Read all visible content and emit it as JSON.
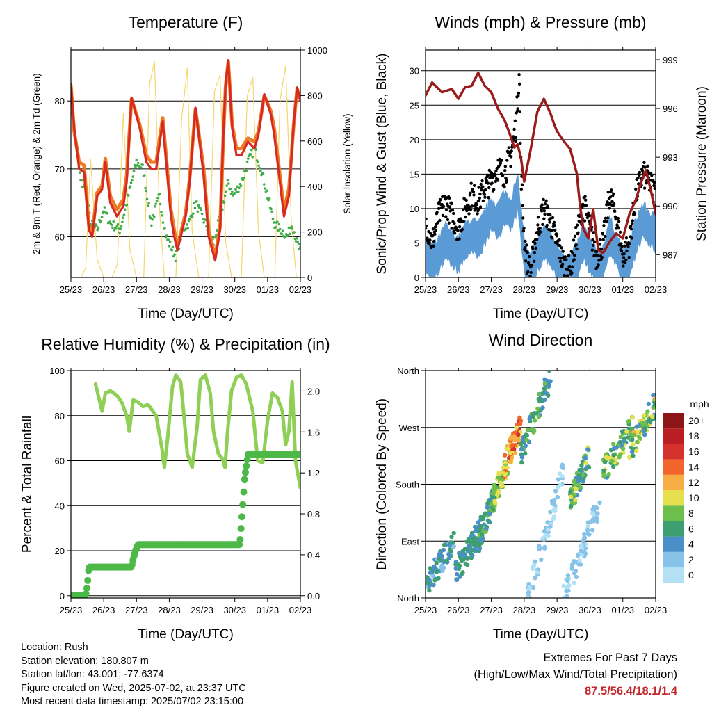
{
  "colors": {
    "temp2m": "#f07a22",
    "temp9m": "#d62a22",
    "dewpoint": "#3fae49",
    "solar": "#f5d76e",
    "wind": "#5b9bd5",
    "gust": "#000000",
    "pressure": "#9b1b1b",
    "rh": "#8fcf55",
    "precip": "#4cb848",
    "speed_scale": [
      "#b3e0f5",
      "#87c2e8",
      "#4b8fc9",
      "#3d9e72",
      "#6cbf4a",
      "#e6df4e",
      "#f7ad43",
      "#f2652a",
      "#d6322d",
      "#b81e23",
      "#8c1518"
    ]
  },
  "chart_data": [
    {
      "id": "temperature",
      "type": "line",
      "title": "Temperature (F)",
      "xlabel": "Time (Day/UTC)",
      "ylabel": "2m & 9m T (Red, Orange) & 2m Td (Green)",
      "y2label": "Solar Insolation (Yellow)",
      "xticks": [
        "25/23",
        "26/23",
        "27/23",
        "28/23",
        "29/23",
        "30/23",
        "01/23",
        "02/23"
      ],
      "xlim": [
        0,
        7
      ],
      "ylim": [
        54,
        87.5
      ],
      "yticks": [
        60,
        70,
        80
      ],
      "y2lim": [
        0,
        1000
      ],
      "y2ticks": [
        0,
        200,
        400,
        600,
        800,
        1000
      ],
      "grid": true,
      "series": [
        {
          "key": "temp9m",
          "x": [
            0,
            0.1,
            0.25,
            0.4,
            0.55,
            0.65,
            0.8,
            0.95,
            1.05,
            1.2,
            1.4,
            1.6,
            1.7,
            1.85,
            2.1,
            2.3,
            2.45,
            2.6,
            2.8,
            3.05,
            3.15,
            3.25,
            3.5,
            3.62,
            3.8,
            4.05,
            4.2,
            4.4,
            4.55,
            4.65,
            4.72,
            4.8,
            4.92,
            5.05,
            5.2,
            5.4,
            5.6,
            5.72,
            5.9,
            6.1,
            6.2,
            6.35,
            6.5,
            6.65,
            6.8,
            6.9,
            7.0
          ],
          "y": [
            82.5,
            76,
            70,
            69.5,
            61,
            60,
            66,
            67,
            71,
            65,
            63,
            64.5,
            68,
            80.5,
            76,
            71,
            70,
            70,
            77,
            63,
            60,
            58,
            63,
            68,
            79,
            69,
            60,
            56.5,
            61,
            75,
            82.5,
            86,
            76,
            72,
            72,
            74,
            73,
            75,
            81,
            78,
            75,
            69,
            63,
            66,
            77,
            82,
            80
          ]
        },
        {
          "key": "temp2m",
          "x": [
            0,
            0.1,
            0.25,
            0.4,
            0.55,
            0.65,
            0.8,
            0.95,
            1.05,
            1.2,
            1.4,
            1.6,
            1.7,
            1.85,
            2.1,
            2.3,
            2.45,
            2.6,
            2.8,
            3.05,
            3.15,
            3.25,
            3.5,
            3.62,
            3.8,
            4.05,
            4.2,
            4.4,
            4.55,
            4.65,
            4.72,
            4.8,
            4.92,
            5.05,
            5.2,
            5.4,
            5.6,
            5.72,
            5.9,
            6.1,
            6.2,
            6.35,
            6.5,
            6.65,
            6.8,
            6.9,
            7.0
          ],
          "y": [
            82.3,
            75.5,
            71,
            70.5,
            61.5,
            60.5,
            66.5,
            67.5,
            71.5,
            66,
            64,
            65.5,
            69,
            80.3,
            76.5,
            72,
            71,
            71,
            77.5,
            64,
            61,
            58.5,
            63.5,
            68.5,
            78.8,
            70,
            61,
            57,
            61.5,
            74.8,
            82.2,
            85.8,
            76.5,
            73,
            73,
            74.5,
            74,
            75.5,
            80.8,
            78.5,
            76,
            70,
            64,
            67,
            76.8,
            81.8,
            80.2
          ]
        },
        {
          "key": "dewpoint",
          "x": [
            0,
            0.15,
            0.3,
            0.45,
            0.6,
            0.8,
            1.0,
            1.2,
            1.5,
            1.7,
            1.85,
            2.0,
            2.2,
            2.45,
            2.7,
            2.9,
            3.1,
            3.2,
            3.4,
            3.6,
            3.8,
            4.0,
            4.2,
            4.35,
            4.5,
            4.65,
            4.8,
            4.95,
            5.2,
            5.4,
            5.6,
            5.8,
            6.0,
            6.2,
            6.4,
            6.6,
            6.75,
            6.9,
            7.0
          ],
          "y": [
            82,
            74,
            68,
            67,
            62,
            61,
            64,
            62,
            61,
            65,
            68,
            71,
            70,
            62,
            66,
            60,
            58,
            57,
            61,
            62,
            65,
            63,
            61,
            59,
            62,
            65,
            68,
            66,
            68,
            71,
            73,
            70,
            66,
            62,
            61,
            60,
            62,
            59,
            58
          ]
        },
        {
          "key": "solar",
          "x": [
            0,
            0.3,
            0.45,
            0.6,
            0.8,
            1.0,
            1.25,
            1.42,
            1.6,
            1.8,
            2.0,
            2.22,
            2.4,
            2.55,
            2.7,
            2.85,
            3.0,
            3.2,
            3.38,
            3.55,
            3.7,
            3.9,
            4.05,
            4.2,
            4.38,
            4.55,
            4.72,
            4.9,
            5.05,
            5.2,
            5.38,
            5.55,
            5.72,
            5.9,
            6.05,
            6.22,
            6.38,
            6.55,
            6.72,
            6.88,
            7.0
          ],
          "y": [
            0,
            0,
            40,
            520,
            80,
            0,
            0,
            60,
            720,
            120,
            0,
            0,
            850,
            950,
            300,
            0,
            0,
            0,
            700,
            920,
            200,
            0,
            0,
            0,
            820,
            890,
            160,
            0,
            0,
            0,
            800,
            880,
            200,
            0,
            0,
            0,
            780,
            930,
            250,
            0,
            0
          ]
        }
      ]
    },
    {
      "id": "winds",
      "type": "line",
      "title": "Winds (mph) & Pressure (mb)",
      "xlabel": "Time (Day/UTC)",
      "ylabel": "Sonic/Prop Wind & Gust (Blue, Black)",
      "y2label": "Station Pressure (Maroon)",
      "xticks": [
        "25/23",
        "26/23",
        "27/23",
        "28/23",
        "29/23",
        "30/23",
        "01/23",
        "02/23"
      ],
      "xlim": [
        0,
        7
      ],
      "ylim": [
        0,
        33
      ],
      "yticks": [
        0,
        5,
        10,
        15,
        20,
        25,
        30
      ],
      "y2lim": [
        985.6,
        999.6
      ],
      "y2ticks": [
        987,
        990,
        993,
        996,
        999
      ],
      "grid": true,
      "series": [
        {
          "key": "wind",
          "x": [
            0,
            0.2,
            0.4,
            0.6,
            0.8,
            1.0,
            1.2,
            1.4,
            1.6,
            1.8,
            2.0,
            2.2,
            2.4,
            2.6,
            2.8,
            2.9,
            3.0,
            3.1,
            3.2,
            3.4,
            3.6,
            3.8,
            4.0,
            4.2,
            4.4,
            4.6,
            4.8,
            5.0,
            5.2,
            5.4,
            5.6,
            5.8,
            6.0,
            6.2,
            6.4,
            6.6,
            6.8,
            7.0
          ],
          "y": [
            3,
            2,
            3,
            5,
            4,
            3,
            5,
            6,
            5,
            7,
            9,
            8,
            10,
            9,
            12,
            8,
            3,
            1,
            0.5,
            3,
            5,
            4,
            2,
            1,
            0.5,
            2,
            5,
            3,
            1,
            2,
            6,
            4,
            1,
            2,
            6,
            8,
            7,
            6
          ]
        },
        {
          "key": "gust",
          "x": [
            0,
            0.2,
            0.4,
            0.6,
            0.8,
            1.0,
            1.2,
            1.4,
            1.6,
            1.8,
            2.0,
            2.2,
            2.4,
            2.6,
            2.75,
            2.85,
            2.9,
            3.0,
            3.1,
            3.2,
            3.4,
            3.6,
            3.8,
            4.0,
            4.2,
            4.4,
            4.6,
            4.8,
            5.0,
            5.2,
            5.4,
            5.6,
            5.8,
            6.0,
            6.2,
            6.4,
            6.6,
            6.8,
            7.0
          ],
          "y": [
            8,
            5,
            9,
            11,
            9,
            7,
            10,
            12,
            11,
            13,
            14,
            16,
            15,
            18,
            22,
            30,
            16,
            6,
            2,
            1,
            7,
            10,
            8,
            5,
            2,
            1,
            6,
            11,
            7,
            3,
            5,
            12,
            9,
            3,
            5,
            12,
            15,
            14,
            12
          ]
        },
        {
          "key": "pressure",
          "x": [
            0,
            0.2,
            0.5,
            0.8,
            1.0,
            1.2,
            1.4,
            1.6,
            1.8,
            2.0,
            2.2,
            2.4,
            2.55,
            2.7,
            2.8,
            2.9,
            3.0,
            3.2,
            3.4,
            3.6,
            3.8,
            3.9,
            4.0,
            4.2,
            4.4,
            4.6,
            4.7,
            4.8,
            4.95,
            5.1,
            5.25,
            5.4,
            5.6,
            5.8,
            6.0,
            6.2,
            6.4,
            6.55,
            6.7,
            6.85,
            7.0
          ],
          "y": [
            996.8,
            997.6,
            997.0,
            997.2,
            996.6,
            997.3,
            997.4,
            998.2,
            997.4,
            997.0,
            996.0,
            995.3,
            994.5,
            993.6,
            993.8,
            993.0,
            991.5,
            993.5,
            995.8,
            996.6,
            995.7,
            995.1,
            994.6,
            994.0,
            993.5,
            992.0,
            990.0,
            988.6,
            988.0,
            989.8,
            987.3,
            987.1,
            987.8,
            988.3,
            988.0,
            989.5,
            990.4,
            991.4,
            992.2,
            991.0,
            989.5
          ]
        }
      ]
    },
    {
      "id": "humidity",
      "type": "line",
      "title": "Relative Humidity (%) & Precipitation (in)",
      "xlabel": "Time (Day/UTC)",
      "ylabel": "Percent & Total Rainfall",
      "xticks": [
        "25/23",
        "26/23",
        "27/23",
        "28/23",
        "29/23",
        "30/23",
        "01/23",
        "02/23"
      ],
      "xlim": [
        0,
        7
      ],
      "ylim": [
        -1,
        100
      ],
      "yticks": [
        0,
        20,
        40,
        60,
        80,
        100
      ],
      "y2lim": [
        -0.022,
        2.2
      ],
      "y2ticks": [
        "0.0",
        "0.4",
        "0.8",
        "1.2",
        "1.6",
        "2.0"
      ],
      "grid": true,
      "series": [
        {
          "key": "rh",
          "x": [
            0.75,
            0.85,
            0.95,
            1.05,
            1.2,
            1.4,
            1.55,
            1.7,
            1.78,
            1.9,
            2.05,
            2.2,
            2.35,
            2.6,
            2.78,
            2.85,
            2.95,
            3.1,
            3.2,
            3.35,
            3.45,
            3.55,
            3.7,
            3.85,
            3.95,
            4.1,
            4.25,
            4.35,
            4.5,
            4.62,
            4.7,
            4.78,
            4.9,
            5.05,
            5.2,
            5.35,
            5.55,
            5.7,
            5.85,
            6.0,
            6.15,
            6.3,
            6.45,
            6.55,
            6.65,
            6.75,
            6.85,
            7.0
          ],
          "y": [
            94,
            88,
            82,
            90,
            91,
            89,
            86,
            80,
            73,
            87,
            86,
            84,
            85,
            80,
            65,
            57,
            70,
            93,
            98,
            95,
            80,
            63,
            57,
            75,
            96,
            98,
            90,
            73,
            63,
            61,
            57,
            73,
            91,
            97,
            98,
            94,
            82,
            60,
            59,
            78,
            90,
            88,
            82,
            67,
            73,
            95,
            60,
            48
          ]
        },
        {
          "key": "precip",
          "x": [
            0,
            0.45,
            0.5,
            0.55,
            1.85,
            1.9,
            1.97,
            2.05,
            5.15,
            5.2,
            5.25,
            5.3,
            5.4,
            7.0
          ],
          "y": [
            0,
            0,
            0.1,
            0.28,
            0.28,
            0.36,
            0.44,
            0.5,
            0.5,
            0.7,
            0.92,
            1.15,
            1.38,
            1.38
          ]
        }
      ]
    },
    {
      "id": "wind_direction",
      "type": "scatter",
      "title": "Wind Direction",
      "xlabel": "Time (Day/UTC)",
      "ylabel": "Direction (Colored By Speed)",
      "xticks": [
        "25/23",
        "26/23",
        "27/23",
        "28/23",
        "29/23",
        "30/23",
        "01/23",
        "02/23"
      ],
      "xlim": [
        0,
        7
      ],
      "ylim": [
        0,
        360
      ],
      "yticks": [
        "North",
        "East",
        "South",
        "West",
        "North"
      ],
      "legend": {
        "title": "mph",
        "labels": [
          "0",
          "2",
          "4",
          "6",
          "8",
          "10",
          "12",
          "14",
          "16",
          "18",
          "20+"
        ],
        "placement": "right"
      },
      "clusters": [
        {
          "x": [
            0.0,
            0.9
          ],
          "y": [
            20,
            90
          ],
          "speed": [
            2,
            6
          ]
        },
        {
          "x": [
            0.9,
            1.7
          ],
          "y": [
            40,
            110
          ],
          "speed": [
            3,
            7
          ]
        },
        {
          "x": [
            1.6,
            2.1
          ],
          "y": [
            90,
            160
          ],
          "speed": [
            4,
            8
          ]
        },
        {
          "x": [
            2.0,
            2.5
          ],
          "y": [
            150,
            210
          ],
          "speed": [
            6,
            11
          ]
        },
        {
          "x": [
            2.4,
            2.9
          ],
          "y": [
            210,
            270
          ],
          "speed": [
            9,
            16
          ]
        },
        {
          "x": [
            2.9,
            3.8
          ],
          "y": [
            230,
            350
          ],
          "speed": [
            3,
            8
          ]
        },
        {
          "x": [
            3.1,
            4.2
          ],
          "y": [
            0,
            200
          ],
          "speed": [
            0,
            3
          ]
        },
        {
          "x": [
            4.4,
            5.0
          ],
          "y": [
            150,
            230
          ],
          "speed": [
            3,
            10
          ]
        },
        {
          "x": [
            4.2,
            5.3
          ],
          "y": [
            0,
            150
          ],
          "speed": [
            0,
            3
          ]
        },
        {
          "x": [
            5.4,
            6.3
          ],
          "y": [
            200,
            270
          ],
          "speed": [
            4,
            10
          ]
        },
        {
          "x": [
            6.2,
            7.0
          ],
          "y": [
            230,
            310
          ],
          "speed": [
            4,
            12
          ]
        }
      ]
    }
  ],
  "info": {
    "location": "Location: Rush",
    "elevation": "Station elevation: 180.807 m",
    "latlon": "Station lat/lon: 43.001; -77.6374",
    "created": "Figure created on Wed, 2025-07-02, at 23:37 UTC",
    "recent": "Most recent data timestamp: 2025/07/02 23:15:00"
  },
  "extremes": {
    "line1": "Extremes For Past 7 Days",
    "line2": "(High/Low/Max Wind/Total Precipitation)",
    "values": "87.5/56.4/18.1/1.4"
  }
}
